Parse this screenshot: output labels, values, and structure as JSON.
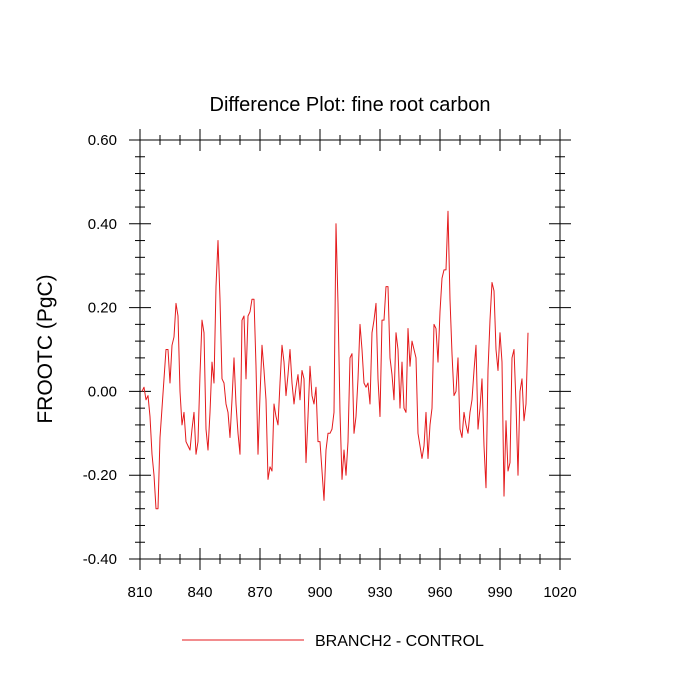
{
  "chart_data": {
    "type": "line",
    "title": "Difference Plot: fine root carbon",
    "xlabel": "",
    "ylabel": "FROOTC  (PgC)",
    "xlim": [
      810,
      1020
    ],
    "ylim": [
      -0.4,
      0.6
    ],
    "x_ticks": [
      810,
      840,
      870,
      900,
      930,
      960,
      990,
      1020
    ],
    "x_tick_labels": [
      "810",
      "840",
      "870",
      "900",
      "930",
      "960",
      "990",
      "1020"
    ],
    "y_ticks": [
      -0.4,
      -0.2,
      0.0,
      0.2,
      0.4,
      0.6
    ],
    "y_tick_labels": [
      "-0.40",
      "-0.20",
      "0.00",
      "0.20",
      "0.40",
      "0.60"
    ],
    "grid": false,
    "legend_position": "bottom-center",
    "line_color": "#e41a1c",
    "series": [
      {
        "name": "BRANCH2 - CONTROL",
        "x_start": 811,
        "x_step": 1,
        "values": [
          0.0,
          0.01,
          -0.02,
          -0.01,
          -0.06,
          -0.15,
          -0.2,
          -0.28,
          -0.28,
          -0.11,
          -0.04,
          0.03,
          0.1,
          0.1,
          0.02,
          0.11,
          0.13,
          0.21,
          0.18,
          0.0,
          -0.08,
          -0.05,
          -0.12,
          -0.13,
          -0.14,
          -0.09,
          -0.05,
          -0.15,
          -0.12,
          0.04,
          0.17,
          0.14,
          -0.09,
          -0.14,
          -0.05,
          0.07,
          0.02,
          0.25,
          0.36,
          0.22,
          0.03,
          0.02,
          -0.03,
          -0.05,
          -0.11,
          -0.02,
          0.08,
          -0.03,
          -0.1,
          -0.15,
          0.17,
          0.18,
          0.03,
          0.18,
          0.19,
          0.22,
          0.22,
          0.06,
          -0.15,
          -0.01,
          0.11,
          0.05,
          -0.02,
          -0.21,
          -0.18,
          -0.19,
          -0.03,
          -0.06,
          -0.08,
          0.02,
          0.11,
          0.07,
          -0.01,
          0.04,
          0.1,
          0.02,
          -0.03,
          0.01,
          0.04,
          -0.02,
          0.05,
          0.03,
          -0.17,
          -0.06,
          0.06,
          -0.01,
          -0.03,
          0.01,
          -0.12,
          -0.12,
          -0.19,
          -0.26,
          -0.14,
          -0.1,
          -0.1,
          -0.09,
          -0.05,
          0.4,
          0.21,
          -0.05,
          -0.21,
          -0.14,
          -0.2,
          -0.12,
          0.08,
          0.09,
          -0.1,
          -0.06,
          0.03,
          0.16,
          0.1,
          0.02,
          0.01,
          0.02,
          -0.03,
          0.14,
          0.17,
          0.21,
          0.03,
          -0.06,
          0.17,
          0.17,
          0.25,
          0.25,
          0.08,
          0.04,
          -0.02,
          0.14,
          0.1,
          -0.04,
          0.07,
          -0.04,
          -0.05,
          0.15,
          0.06,
          0.12,
          0.1,
          0.08,
          -0.1,
          -0.13,
          -0.16,
          -0.13,
          -0.05,
          -0.16,
          -0.08,
          -0.04,
          0.16,
          0.15,
          0.07,
          0.19,
          0.27,
          0.29,
          0.29,
          0.43,
          0.22,
          0.09,
          -0.01,
          0.0,
          0.08,
          -0.09,
          -0.11,
          -0.05,
          -0.08,
          -0.1,
          -0.05,
          -0.02,
          0.05,
          0.11,
          -0.09,
          -0.04,
          0.03,
          -0.13,
          -0.23,
          0.05,
          0.17,
          0.26,
          0.24,
          0.1,
          0.05,
          0.14,
          0.07,
          -0.25,
          -0.07,
          -0.19,
          -0.17,
          0.08,
          0.1,
          -0.03,
          -0.2,
          0.0,
          0.03,
          -0.07,
          -0.03,
          0.14
        ]
      }
    ]
  }
}
